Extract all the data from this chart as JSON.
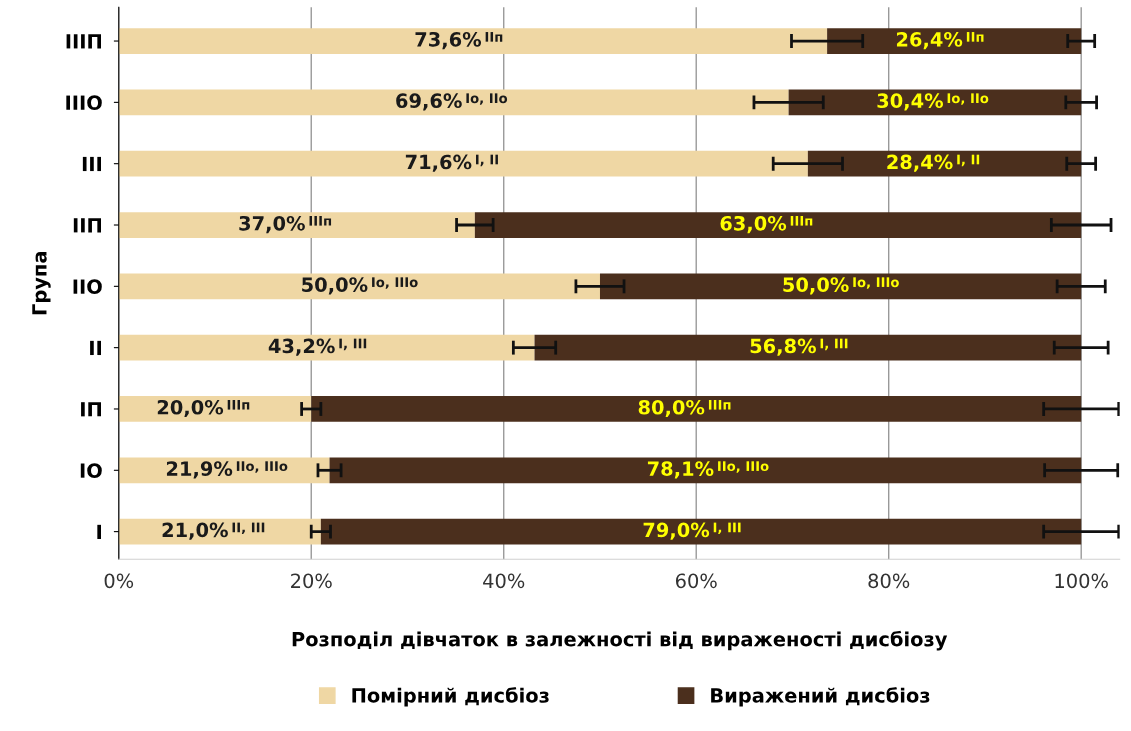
{
  "chart_data": {
    "type": "bar",
    "orientation": "horizontal",
    "stacked": true,
    "ylabel": "Група",
    "xlabel": "Розподіл дівчаток в залежності від вираженості дисбіозу",
    "categories": [
      "IIIП",
      "IIIО",
      "III",
      "IIП",
      "IIО",
      "II",
      "IП",
      "IО",
      "I"
    ],
    "series": [
      {
        "name": "Помірний дисбіоз",
        "color": "#efd7a4",
        "values": [
          73.6,
          69.6,
          71.6,
          37.0,
          50.0,
          43.2,
          20.0,
          21.9,
          21.0
        ],
        "errors": [
          3.7,
          3.6,
          3.6,
          1.9,
          2.5,
          2.2,
          1.0,
          1.2,
          1.0
        ],
        "value_labels": [
          "73,6%$^{IIп}$",
          "69,6%$^{Iо, IIо}$",
          "71,6%$^{I, II}$",
          "37,0%$^{IIIп}$",
          "50,0%$^{Iо, IIIо}$",
          "43,2%$^{I, III}$",
          "20,0%$^{IIIп}$",
          "21,9%$^{IIо, IIIо}$",
          "21,0%$^{II, III}$"
        ]
      },
      {
        "name": "Виражений дисбіоз",
        "color": "#4b2f1d",
        "values": [
          26.4,
          30.4,
          28.4,
          63.0,
          50.0,
          56.8,
          80.0,
          78.1,
          79.0
        ],
        "errors": [
          1.4,
          1.6,
          1.5,
          3.1,
          2.5,
          2.8,
          3.9,
          3.8,
          3.9
        ],
        "value_labels": [
          "26,4%$^{IIп}$",
          "30,4%$^{Iо, IIо}$",
          "28,4%$^{I, II}$",
          "63,0%$^{IIIп}$",
          "50,0%$^{Iо, IIIо}$",
          "56,8%$^{I, III}$",
          "80,0%$^{IIIп}$",
          "78,1%$^{IIо, IIIо}$",
          "79,0%$^{I, III}$"
        ]
      }
    ],
    "xlim": [
      0,
      104
    ],
    "xticks": [
      {
        "value": 0,
        "label": "0%"
      },
      {
        "value": 20,
        "label": "20%"
      },
      {
        "value": 40,
        "label": "40%"
      },
      {
        "value": 60,
        "label": "60%"
      },
      {
        "value": 80,
        "label": "80%"
      },
      {
        "value": 100,
        "label": "100%"
      }
    ],
    "grid": "x",
    "legend": "bottom",
    "marker": "square"
  }
}
